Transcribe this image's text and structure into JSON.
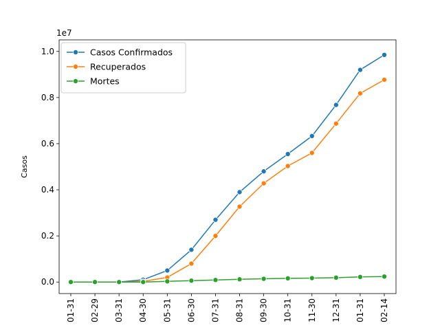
{
  "chart_data": {
    "type": "line",
    "title": "",
    "xlabel": "",
    "ylabel": "Casos",
    "y_exponent_label": "1e7",
    "categories": [
      "01-31",
      "02-29",
      "03-31",
      "04-30",
      "05-31",
      "06-30",
      "07-31",
      "08-31",
      "09-30",
      "10-31",
      "11-30",
      "12-31",
      "01-31",
      "02-14"
    ],
    "y_tick_values": [
      0.0,
      0.2,
      0.4,
      0.6,
      0.8,
      1.0
    ],
    "y_tick_labels": [
      "0.0",
      "0.2",
      "0.4",
      "0.6",
      "0.8",
      "1.0"
    ],
    "ylim": [
      -0.05,
      1.05
    ],
    "grid": false,
    "legend_position": "upper-left",
    "series": [
      {
        "name": "Casos Confirmados",
        "color": "#1f77b4",
        "values": [
          0.0,
          0.0,
          0.0,
          0.01,
          0.05,
          0.14,
          0.27,
          0.39,
          0.48,
          0.555,
          0.633,
          0.768,
          0.92,
          0.985
        ]
      },
      {
        "name": "Recuperados",
        "color": "#ff7f0e",
        "values": [
          0.0,
          0.0,
          0.0,
          0.003,
          0.02,
          0.08,
          0.2,
          0.327,
          0.428,
          0.503,
          0.56,
          0.687,
          0.818,
          0.877
        ]
      },
      {
        "name": "Mortes",
        "color": "#2ca02c",
        "values": [
          0.0,
          0.0,
          0.0,
          0.0,
          0.003,
          0.006,
          0.009,
          0.012,
          0.014,
          0.016,
          0.017,
          0.019,
          0.022,
          0.024
        ]
      }
    ]
  }
}
